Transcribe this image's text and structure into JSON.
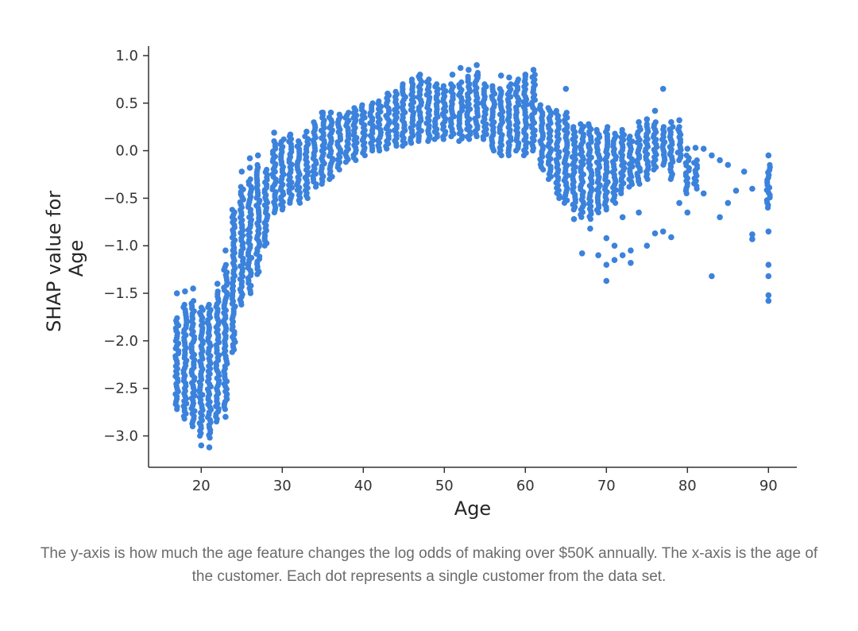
{
  "chart_data": {
    "type": "scatter",
    "title": "",
    "xlabel": "Age",
    "ylabel_lines": [
      "SHAP value for",
      "Age"
    ],
    "xlim": [
      13.5,
      93.5
    ],
    "ylim": [
      -3.33,
      1.1
    ],
    "x_ticks": [
      20,
      30,
      40,
      50,
      60,
      70,
      80,
      90
    ],
    "y_ticks": [
      1.0,
      0.5,
      0.0,
      -0.5,
      -1.0,
      -1.5,
      -2.0,
      -2.5,
      -3.0
    ],
    "y_tick_labels": [
      "1.0",
      "0.5",
      "0.0",
      "−0.5",
      "−1.0",
      "−1.5",
      "−2.0",
      "−2.5",
      "−3.0"
    ],
    "grid": false,
    "legend": "none",
    "point_color": "#3b82dc",
    "age_ranges": [
      {
        "age": 17,
        "low": -2.72,
        "high": -1.76
      },
      {
        "age": 18,
        "low": -2.82,
        "high": -1.62
      },
      {
        "age": 19,
        "low": -2.9,
        "high": -1.58
      },
      {
        "age": 20,
        "low": -3.0,
        "high": -1.65
      },
      {
        "age": 21,
        "low": -3.02,
        "high": -1.62
      },
      {
        "age": 22,
        "low": -2.85,
        "high": -1.48
      },
      {
        "age": 23,
        "low": -2.72,
        "high": -1.2
      },
      {
        "age": 24,
        "low": -2.12,
        "high": -0.62
      },
      {
        "age": 25,
        "low": -1.62,
        "high": -0.38
      },
      {
        "age": 26,
        "low": -1.5,
        "high": -0.3
      },
      {
        "age": 27,
        "low": -1.3,
        "high": -0.15
      },
      {
        "age": 28,
        "low": -1.0,
        "high": -0.2
      },
      {
        "age": 29,
        "low": -0.65,
        "high": 0.1
      },
      {
        "age": 30,
        "low": -0.62,
        "high": 0.12
      },
      {
        "age": 31,
        "low": -0.55,
        "high": 0.15
      },
      {
        "age": 32,
        "low": -0.55,
        "high": 0.1
      },
      {
        "age": 33,
        "low": -0.5,
        "high": 0.15
      },
      {
        "age": 34,
        "low": -0.38,
        "high": 0.3
      },
      {
        "age": 35,
        "low": -0.35,
        "high": 0.4
      },
      {
        "age": 36,
        "low": -0.3,
        "high": 0.35
      },
      {
        "age": 37,
        "low": -0.2,
        "high": 0.38
      },
      {
        "age": 38,
        "low": -0.12,
        "high": 0.4
      },
      {
        "age": 39,
        "low": -0.1,
        "high": 0.45
      },
      {
        "age": 40,
        "low": -0.05,
        "high": 0.48
      },
      {
        "age": 41,
        "low": 0.0,
        "high": 0.5
      },
      {
        "age": 42,
        "low": 0.0,
        "high": 0.52
      },
      {
        "age": 43,
        "low": 0.02,
        "high": 0.58
      },
      {
        "age": 44,
        "low": 0.05,
        "high": 0.62
      },
      {
        "age": 45,
        "low": 0.05,
        "high": 0.7
      },
      {
        "age": 46,
        "low": 0.08,
        "high": 0.75
      },
      {
        "age": 47,
        "low": 0.1,
        "high": 0.78
      },
      {
        "age": 48,
        "low": 0.1,
        "high": 0.75
      },
      {
        "age": 49,
        "low": 0.12,
        "high": 0.7
      },
      {
        "age": 50,
        "low": 0.12,
        "high": 0.68
      },
      {
        "age": 51,
        "low": 0.15,
        "high": 0.7
      },
      {
        "age": 52,
        "low": 0.1,
        "high": 0.72
      },
      {
        "age": 53,
        "low": 0.12,
        "high": 0.78
      },
      {
        "age": 54,
        "low": 0.15,
        "high": 0.82
      },
      {
        "age": 55,
        "low": 0.12,
        "high": 0.7
      },
      {
        "age": 56,
        "low": 0.0,
        "high": 0.68
      },
      {
        "age": 57,
        "low": -0.05,
        "high": 0.65
      },
      {
        "age": 58,
        "low": -0.05,
        "high": 0.7
      },
      {
        "age": 59,
        "low": 0.0,
        "high": 0.75
      },
      {
        "age": 60,
        "low": -0.05,
        "high": 0.78
      },
      {
        "age": 61,
        "low": 0.0,
        "high": 0.8
      },
      {
        "age": 62,
        "low": -0.2,
        "high": 0.48
      },
      {
        "age": 63,
        "low": -0.3,
        "high": 0.45
      },
      {
        "age": 64,
        "low": -0.5,
        "high": 0.42
      },
      {
        "age": 65,
        "low": -0.55,
        "high": 0.4
      },
      {
        "age": 66,
        "low": -0.62,
        "high": 0.25
      },
      {
        "age": 67,
        "low": -0.7,
        "high": 0.28
      },
      {
        "age": 68,
        "low": -0.72,
        "high": 0.28
      },
      {
        "age": 69,
        "low": -0.65,
        "high": 0.22
      },
      {
        "age": 70,
        "low": -0.62,
        "high": 0.25
      },
      {
        "age": 71,
        "low": -0.55,
        "high": 0.18
      },
      {
        "age": 72,
        "low": -0.45,
        "high": 0.22
      },
      {
        "age": 73,
        "low": -0.38,
        "high": 0.15
      },
      {
        "age": 74,
        "low": -0.35,
        "high": 0.25
      },
      {
        "age": 75,
        "low": -0.3,
        "high": 0.28
      },
      {
        "age": 76,
        "low": -0.2,
        "high": 0.3
      },
      {
        "age": 77,
        "low": -0.15,
        "high": 0.25
      },
      {
        "age": 78,
        "low": -0.3,
        "high": 0.25
      },
      {
        "age": 79,
        "low": -0.1,
        "high": 0.25
      },
      {
        "age": 80,
        "low": -0.45,
        "high": -0.05
      },
      {
        "age": 81,
        "low": -0.4,
        "high": -0.1
      },
      {
        "age": 90,
        "low": -0.6,
        "high": -0.15
      }
    ],
    "outliers": [
      {
        "x": 17,
        "y": -1.5
      },
      {
        "x": 18,
        "y": -1.48
      },
      {
        "x": 19,
        "y": -1.45
      },
      {
        "x": 20,
        "y": -3.1
      },
      {
        "x": 21,
        "y": -3.12
      },
      {
        "x": 22,
        "y": -1.4
      },
      {
        "x": 23,
        "y": -1.05
      },
      {
        "x": 23,
        "y": -2.8
      },
      {
        "x": 24,
        "y": -1.04
      },
      {
        "x": 25,
        "y": -0.22
      },
      {
        "x": 26,
        "y": -0.18
      },
      {
        "x": 26,
        "y": -0.08
      },
      {
        "x": 27,
        "y": -0.05
      },
      {
        "x": 29,
        "y": 0.19
      },
      {
        "x": 31,
        "y": 0.17
      },
      {
        "x": 33,
        "y": 0.2
      },
      {
        "x": 35,
        "y": 0.4
      },
      {
        "x": 36,
        "y": 0.4
      },
      {
        "x": 43,
        "y": 0.6
      },
      {
        "x": 47,
        "y": 0.8
      },
      {
        "x": 51,
        "y": 0.8
      },
      {
        "x": 52,
        "y": 0.87
      },
      {
        "x": 53,
        "y": 0.85
      },
      {
        "x": 54,
        "y": 0.9
      },
      {
        "x": 54,
        "y": 0.79
      },
      {
        "x": 57,
        "y": 0.79
      },
      {
        "x": 58,
        "y": 0.77
      },
      {
        "x": 60,
        "y": 0.8
      },
      {
        "x": 61,
        "y": 0.85
      },
      {
        "x": 65,
        "y": 0.65
      },
      {
        "x": 66,
        "y": -0.72
      },
      {
        "x": 67,
        "y": -1.08
      },
      {
        "x": 68,
        "y": -0.82
      },
      {
        "x": 69,
        "y": -1.1
      },
      {
        "x": 70,
        "y": -0.92
      },
      {
        "x": 70,
        "y": -1.2
      },
      {
        "x": 70,
        "y": -1.37
      },
      {
        "x": 71,
        "y": -1.0
      },
      {
        "x": 71,
        "y": -1.15
      },
      {
        "x": 72,
        "y": -1.1
      },
      {
        "x": 72,
        "y": -0.7
      },
      {
        "x": 73,
        "y": -1.18
      },
      {
        "x": 73,
        "y": -1.05
      },
      {
        "x": 74,
        "y": -0.65
      },
      {
        "x": 74,
        "y": 0.3
      },
      {
        "x": 75,
        "y": -1.0
      },
      {
        "x": 75,
        "y": 0.33
      },
      {
        "x": 76,
        "y": -0.87
      },
      {
        "x": 76,
        "y": 0.42
      },
      {
        "x": 77,
        "y": 0.65
      },
      {
        "x": 77,
        "y": -0.85
      },
      {
        "x": 78,
        "y": -0.91
      },
      {
        "x": 78,
        "y": 0.3
      },
      {
        "x": 79,
        "y": 0.32
      },
      {
        "x": 79,
        "y": -0.55
      },
      {
        "x": 80,
        "y": -0.65
      },
      {
        "x": 80,
        "y": 0.02
      },
      {
        "x": 81,
        "y": 0.03
      },
      {
        "x": 82,
        "y": 0.02
      },
      {
        "x": 82,
        "y": -0.45
      },
      {
        "x": 83,
        "y": -0.05
      },
      {
        "x": 83,
        "y": -1.32
      },
      {
        "x": 84,
        "y": -0.1
      },
      {
        "x": 84,
        "y": -0.7
      },
      {
        "x": 85,
        "y": -0.15
      },
      {
        "x": 85,
        "y": -0.55
      },
      {
        "x": 86,
        "y": -0.42
      },
      {
        "x": 87,
        "y": -0.22
      },
      {
        "x": 88,
        "y": -0.4
      },
      {
        "x": 88,
        "y": -0.88
      },
      {
        "x": 88,
        "y": -0.93
      },
      {
        "x": 90,
        "y": -0.05
      },
      {
        "x": 90,
        "y": -0.85
      },
      {
        "x": 90,
        "y": -1.2
      },
      {
        "x": 90,
        "y": -1.32
      },
      {
        "x": 90,
        "y": -1.52
      },
      {
        "x": 90,
        "y": -1.58
      }
    ]
  },
  "caption": "The y-axis is how much the age feature changes the log odds of making over $50K annually. The x-axis is the age of the customer. Each dot represents a single customer from the data set."
}
